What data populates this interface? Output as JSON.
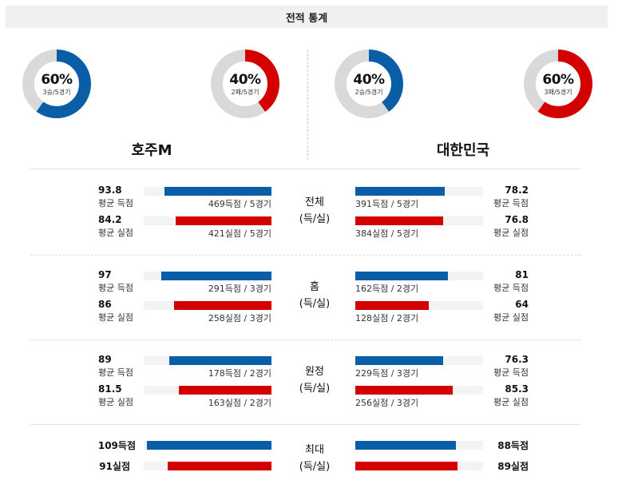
{
  "title": "전적 통계",
  "colors": {
    "blue": "#0a5ea8",
    "red": "#d40000",
    "track": "#d9d9d9"
  },
  "donuts": [
    {
      "pct": "60%",
      "record": "3승/5경기",
      "fraction": 0.6,
      "color": "#0a5ea8"
    },
    {
      "pct": "40%",
      "record": "2패/5경기",
      "fraction": 0.4,
      "color": "#d40000"
    },
    {
      "pct": "40%",
      "record": "2승/5경기",
      "fraction": 0.4,
      "color": "#0a5ea8"
    },
    {
      "pct": "60%",
      "record": "3패/5경기",
      "fraction": 0.6,
      "color": "#d40000"
    }
  ],
  "teams": {
    "left": "호주M",
    "right": "대한민국"
  },
  "sections": [
    {
      "cat1": "전체",
      "cat2": "(득/실)",
      "left": {
        "for": {
          "value": "93.8",
          "label": "평균 득점",
          "sub": "469득점 / 5경기",
          "fraction": 0.67
        },
        "against": {
          "value": "84.2",
          "label": "평균 실점",
          "sub": "421실점 / 5경기",
          "fraction": 0.6
        }
      },
      "right": {
        "for": {
          "value": "78.2",
          "label": "평균 득점",
          "sub": "391득점 / 5경기",
          "fraction": 0.56
        },
        "against": {
          "value": "76.8",
          "label": "평균 실점",
          "sub": "384실점 / 5경기",
          "fraction": 0.55
        }
      }
    },
    {
      "cat1": "홈",
      "cat2": "(득/실)",
      "left": {
        "for": {
          "value": "97",
          "label": "평균 득점",
          "sub": "291득점 / 3경기",
          "fraction": 0.69
        },
        "against": {
          "value": "86",
          "label": "평균 실점",
          "sub": "258실점 / 3경기",
          "fraction": 0.61
        }
      },
      "right": {
        "for": {
          "value": "81",
          "label": "평균 득점",
          "sub": "162득점 / 2경기",
          "fraction": 0.58
        },
        "against": {
          "value": "64",
          "label": "평균 실점",
          "sub": "128실점 / 2경기",
          "fraction": 0.46
        }
      }
    },
    {
      "cat1": "원정",
      "cat2": "(득/실)",
      "left": {
        "for": {
          "value": "89",
          "label": "평균 득점",
          "sub": "178득점 / 2경기",
          "fraction": 0.64
        },
        "against": {
          "value": "81.5",
          "label": "평균 실점",
          "sub": "163실점 / 2경기",
          "fraction": 0.58
        }
      },
      "right": {
        "for": {
          "value": "76.3",
          "label": "평균 득점",
          "sub": "229득점 / 3경기",
          "fraction": 0.55
        },
        "against": {
          "value": "85.3",
          "label": "평균 실점",
          "sub": "256실점 / 3경기",
          "fraction": 0.61
        }
      }
    }
  ],
  "max": {
    "cat1": "최대",
    "cat2": "(득/실)",
    "left": {
      "for": {
        "value": "109득점",
        "fraction": 0.78
      },
      "against": {
        "value": "91실점",
        "fraction": 0.65
      }
    },
    "right": {
      "for": {
        "value": "88득점",
        "fraction": 0.63
      },
      "against": {
        "value": "89실점",
        "fraction": 0.64
      }
    }
  }
}
